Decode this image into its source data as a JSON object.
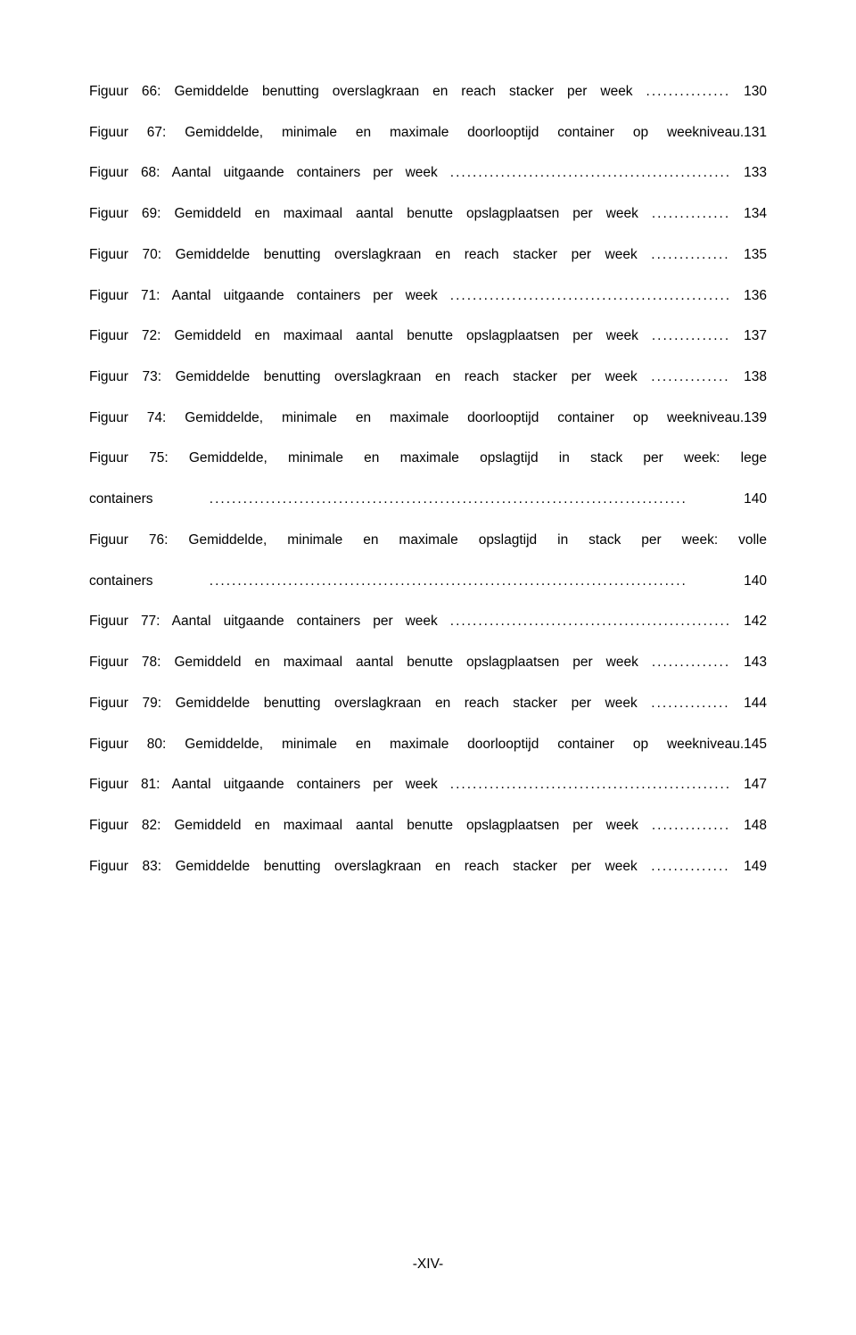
{
  "toc": {
    "entries": [
      {
        "label": "Figuur 66: Gemiddelde benutting overslagkraan en reach stacker per week",
        "page": "130",
        "dots": 15
      },
      {
        "label": "Figuur 67: Gemiddelde, minimale en maximale doorlooptijd container op weekniveau.",
        "page": "131",
        "dots": 0,
        "nodots": true,
        "tight": true
      },
      {
        "label": "Figuur 68: Aantal uitgaande containers per week",
        "page": "133",
        "dots": 50
      },
      {
        "label": "Figuur 69: Gemiddeld en maximaal aantal benutte opslagplaatsen per week",
        "page": "134",
        "dots": 14
      },
      {
        "label": "Figuur 70: Gemiddelde benutting overslagkraan en reach stacker per week",
        "page": "135",
        "dots": 14
      },
      {
        "label": "Figuur 71: Aantal uitgaande containers per week",
        "page": "136",
        "dots": 50
      },
      {
        "label": "Figuur 72: Gemiddeld en maximaal aantal benutte opslagplaatsen per week",
        "page": "137",
        "dots": 14
      },
      {
        "label": "Figuur 73: Gemiddelde benutting overslagkraan en reach stacker per week",
        "page": "138",
        "dots": 14
      },
      {
        "label": "Figuur 74: Gemiddelde, minimale en maximale doorlooptijd container op weekniveau.",
        "page": "139",
        "dots": 0,
        "nodots": true,
        "tight": true
      },
      {
        "wrap": true,
        "line1": "Figuur 75: Gemiddelde, minimale en maximale opslagtijd in stack per week: lege",
        "line2": "containers",
        "page": "140",
        "dots": 85
      },
      {
        "wrap": true,
        "line1": "Figuur 76: Gemiddelde, minimale en maximale opslagtijd in stack per week: volle",
        "line2": "containers",
        "page": "140",
        "dots": 85
      },
      {
        "label": "Figuur 77: Aantal uitgaande containers per week",
        "page": "142",
        "dots": 50
      },
      {
        "label": "Figuur 78: Gemiddeld en maximaal aantal benutte opslagplaatsen per week",
        "page": "143",
        "dots": 14
      },
      {
        "label": "Figuur 79: Gemiddelde benutting overslagkraan en reach stacker per week",
        "page": "144",
        "dots": 14
      },
      {
        "label": "Figuur 80: Gemiddelde, minimale en maximale doorlooptijd container op weekniveau.",
        "page": "145",
        "dots": 0,
        "nodots": true,
        "tight": true
      },
      {
        "label": "Figuur 81: Aantal uitgaande containers per week",
        "page": "147",
        "dots": 50
      },
      {
        "label": "Figuur 82: Gemiddeld en maximaal aantal benutte opslagplaatsen per week",
        "page": "148",
        "dots": 14
      },
      {
        "label": "Figuur 83: Gemiddelde benutting overslagkraan en reach stacker per week",
        "page": "149",
        "dots": 14
      }
    ]
  },
  "footer": "-XIV-"
}
